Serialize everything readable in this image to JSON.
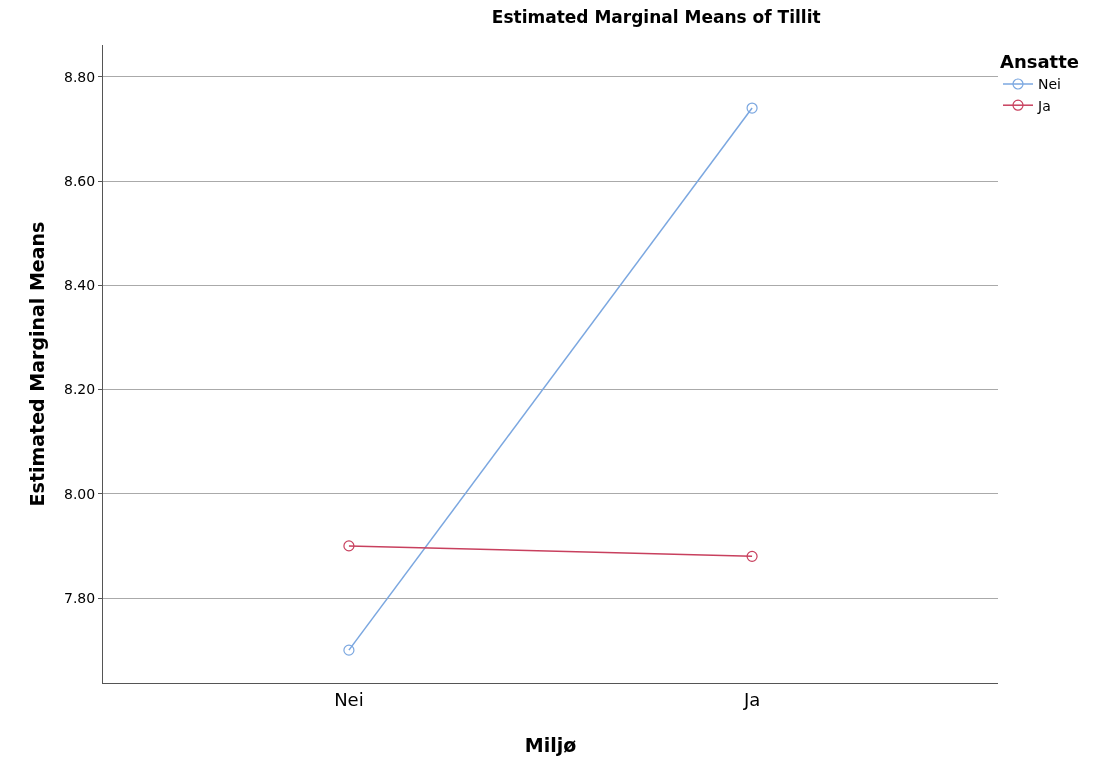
{
  "chart_data": {
    "type": "line",
    "title": "Estimated Marginal Means of Tillit",
    "xlabel": "Miljø",
    "ylabel": "Estimated Marginal Means",
    "legend_title": "Ansatte",
    "categories": [
      "Nei",
      "Ja"
    ],
    "series": [
      {
        "name": "Nei",
        "color": "#7ba7e0",
        "values": [
          7.7,
          8.74
        ]
      },
      {
        "name": "Ja",
        "color": "#c8405e",
        "values": [
          7.9,
          7.88
        ]
      }
    ],
    "ylim": [
      7.637,
      8.861
    ],
    "yticks": [
      {
        "value": 7.8,
        "label": "7.80"
      },
      {
        "value": 8.0,
        "label": "8.00"
      },
      {
        "value": 8.2,
        "label": "8.20"
      },
      {
        "value": 8.4,
        "label": "8.40"
      },
      {
        "value": 8.6,
        "label": "8.60"
      },
      {
        "value": 8.8,
        "label": "8.80"
      }
    ],
    "grid": "y",
    "legend": "top right",
    "marker": "circle",
    "line_style": "solid"
  }
}
